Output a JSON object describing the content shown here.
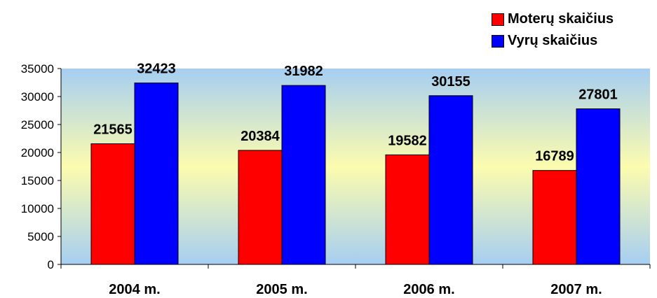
{
  "chart_data": {
    "type": "bar",
    "categories": [
      "2004 m.",
      "2005 m.",
      "2006 m.",
      "2007 m."
    ],
    "series": [
      {
        "name": "Moterų skaičius",
        "color": "#ff0000",
        "values": [
          21565,
          20384,
          19582,
          16789
        ]
      },
      {
        "name": "Vyrų skaičius",
        "color": "#0000ff",
        "values": [
          32423,
          31982,
          30155,
          27801
        ]
      }
    ],
    "ylim": [
      0,
      35000
    ],
    "yticks": [
      0,
      5000,
      10000,
      15000,
      20000,
      25000,
      30000,
      35000
    ],
    "legend_position": "top-right",
    "grid": false,
    "plot_background": "gradient blue-yellow-blue"
  }
}
